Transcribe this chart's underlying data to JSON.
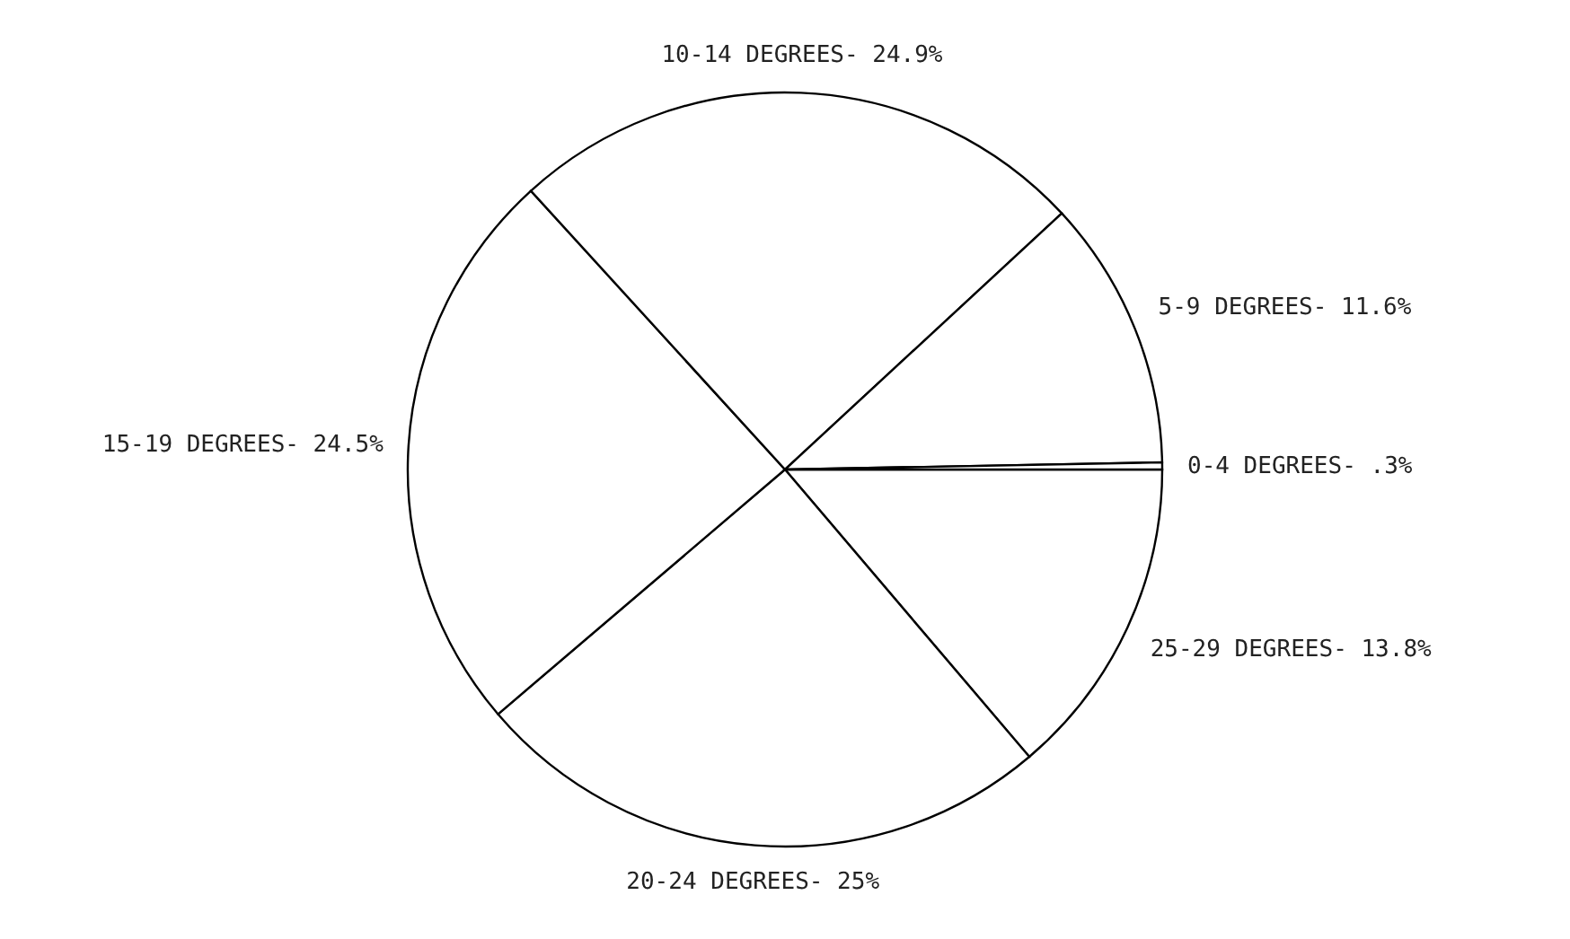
{
  "chart_data": {
    "type": "pie",
    "categories": [
      "25-29 DEGREES",
      "20-24 DEGREES",
      "15-19 DEGREES",
      "10-14 DEGREES",
      "5-9 DEGREES",
      "0-4 DEGREES"
    ],
    "values": [
      13.8,
      25,
      24.5,
      24.9,
      11.6,
      0.3
    ],
    "value_labels": [
      "13.8%",
      "25%",
      "24.5%",
      "24.9%",
      "11.6%",
      ".3%"
    ],
    "colors": [
      "#ffffff",
      "#ffffff",
      "#ffffff",
      "#ffffff",
      "#ffffff",
      "#ffffff"
    ]
  }
}
